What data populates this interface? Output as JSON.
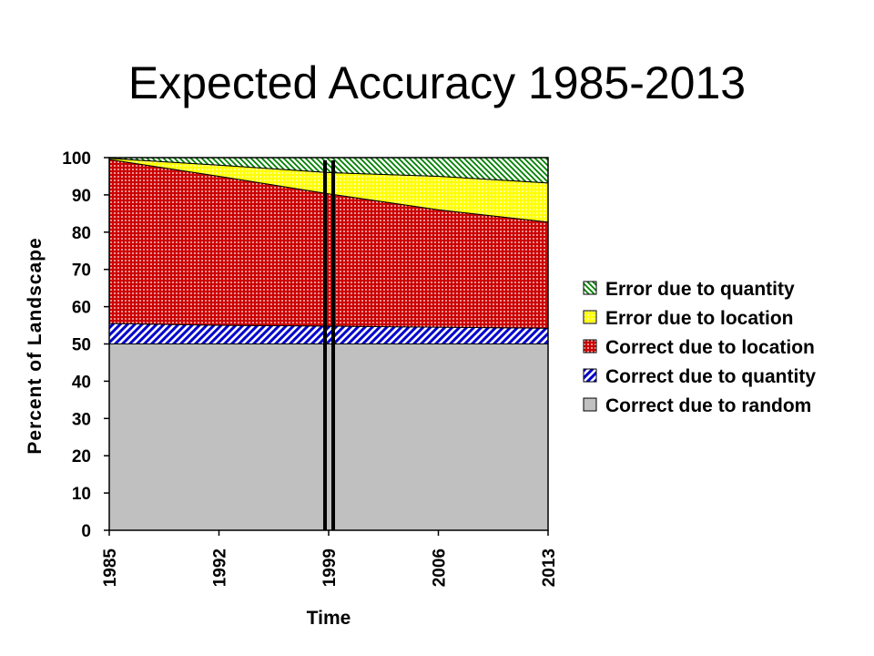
{
  "title": "Expected Accuracy 1985-2013",
  "chart_data": {
    "type": "area",
    "stacked": true,
    "title": "Expected Accuracy 1985-2013",
    "xlabel": "Time",
    "ylabel": "Percent of Landscape",
    "x": [
      1985,
      1992,
      1999,
      2006,
      2013
    ],
    "xticks": [
      "1985",
      "1992",
      "1999",
      "2006",
      "2013"
    ],
    "ylim": [
      0,
      100
    ],
    "yticks": [
      "0",
      "10",
      "20",
      "30",
      "40",
      "50",
      "60",
      "70",
      "80",
      "90",
      "100"
    ],
    "series": [
      {
        "name": "Correct due to random",
        "values": [
          50,
          50,
          50,
          50,
          50
        ],
        "color": "#c0c0c0",
        "pattern": "solid"
      },
      {
        "name": "Correct due to quantity",
        "values": [
          5.5,
          5,
          4.8,
          4.5,
          4.2
        ],
        "color": "#0000cc",
        "pattern": "diagonal-stripes"
      },
      {
        "name": "Correct due to location",
        "values": [
          44,
          40,
          35.5,
          31.5,
          28.5
        ],
        "color": "#cc0000",
        "pattern": "dots"
      },
      {
        "name": "Error due to location",
        "values": [
          0.3,
          3,
          5.7,
          9,
          10.5
        ],
        "color": "#ffff00",
        "pattern": "dots"
      },
      {
        "name": "Error due to quantity",
        "values": [
          0.2,
          2,
          4,
          5,
          6.8
        ],
        "color": "#008000",
        "pattern": "diagonal-stripes"
      }
    ],
    "annotation": "double vertical line at 1999",
    "legend": "right",
    "grid": false
  }
}
